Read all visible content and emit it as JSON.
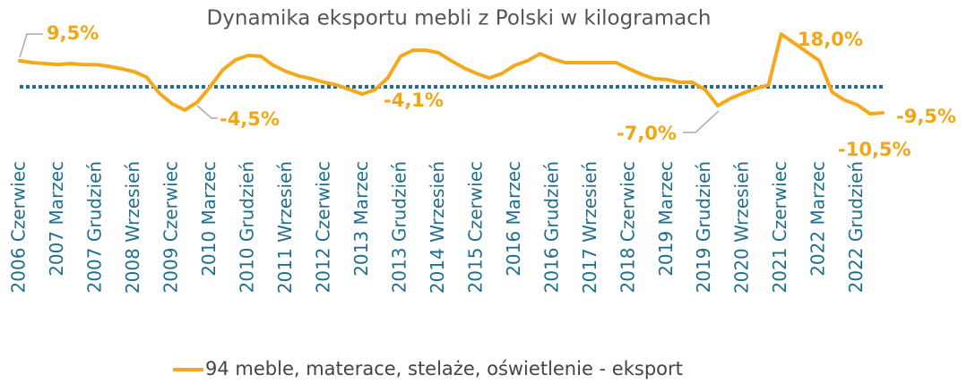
{
  "chart_data": {
    "type": "line",
    "title": "Dynamika eksportu mebli z Polski w kilogramach",
    "categories": [
      "2006 Czerwiec",
      null,
      null,
      "2007 Marzec",
      null,
      null,
      "2007 Grudzień",
      null,
      null,
      "2008 Wrzesień",
      null,
      null,
      "2009 Czerwiec",
      null,
      null,
      "2010 Marzec",
      null,
      null,
      "2010 Grudzień",
      null,
      null,
      "2011 Wrzesień",
      null,
      null,
      "2012 Czerwiec",
      null,
      null,
      "2013 Marzec",
      null,
      null,
      "2013 Grudzień",
      null,
      null,
      "2014 Wrzesień",
      null,
      null,
      "2015 Czerwiec",
      null,
      null,
      "2016 Marzec",
      null,
      null,
      "2016 Grudzień",
      null,
      null,
      "2017 Wrzesień",
      null,
      null,
      "2018 Czerwiec",
      null,
      null,
      "2019 Marzec",
      null,
      null,
      "2019 Grudzień",
      null,
      null,
      "2020 Wrzesień",
      null,
      null,
      "2021 Czerwiec",
      null,
      null,
      "2022 Marzec",
      null,
      null,
      "2022 Grudzień",
      null,
      null
    ],
    "series": [
      {
        "name": "94 meble, materace, stelaże, oświetlenie - eksport",
        "color": "#f5a81c",
        "values": [
          9.4,
          8.7,
          8.4,
          8,
          8.4,
          8,
          8,
          7.4,
          6.5,
          5.5,
          3.5,
          -2.3,
          -6.1,
          -8.4,
          -5.5,
          0,
          6.1,
          9.7,
          11.3,
          11,
          7.7,
          5.5,
          3.9,
          2.9,
          1.6,
          0.6,
          -1,
          -2.6,
          -1,
          3.2,
          11,
          13.2,
          13.2,
          12.3,
          9.4,
          6.8,
          4.8,
          3.2,
          4.8,
          7.7,
          9.4,
          11.9,
          10,
          8.7,
          8.7,
          8.7,
          8.7,
          8.7,
          6.5,
          4.5,
          2.9,
          2.6,
          1.6,
          1.6,
          -1,
          -6.8,
          -4.2,
          -2.3,
          -0.6,
          0.6,
          19,
          15.8,
          12.6,
          9.4,
          -1.9,
          -4.8,
          -6.5,
          -9.7,
          -9.4
        ]
      }
    ],
    "ylim": [
      -14,
      22
    ],
    "reference_line": {
      "value": 0,
      "color": "#1f6e8c"
    },
    "annotations": [
      "9,5%",
      "-4,5%",
      "-4,1%",
      "-7,0%",
      "18,0%",
      "-9,5%",
      "-10,5%"
    ]
  }
}
